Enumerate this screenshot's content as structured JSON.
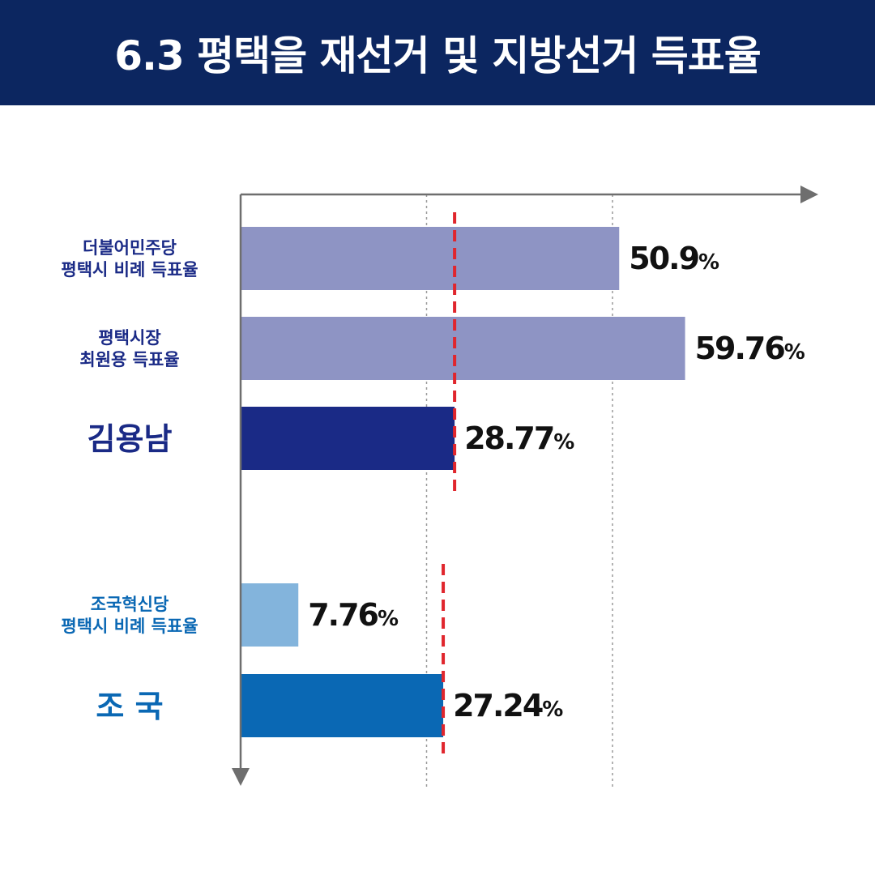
{
  "title": "6.3 평택을 재선거 및 지방선거 득표율",
  "colors": {
    "header_bg": "#0c2660",
    "dem_light": "#8e94c4",
    "dem_dark": "#1a2a86",
    "rebuild_light": "#83b4dc",
    "rebuild_dark": "#0a68b4",
    "reference_line": "#e0262d",
    "axis": "#6e6e6e"
  },
  "chart_data": {
    "type": "bar",
    "orientation": "horizontal",
    "title": "6.3 평택을 재선거 및 지방선거 득표율",
    "xlim": [
      0,
      70
    ],
    "grid": "vertical-dotted",
    "bars": [
      {
        "label": [
          "더불어민주당",
          "평택시 비례 득표율"
        ],
        "value": 50.9,
        "value_text": "50.9",
        "unit": "%",
        "color": "#8e94c4",
        "label_color": "#1a2a86",
        "label_size": "small"
      },
      {
        "label": [
          "평택시장",
          "최원용 득표율"
        ],
        "value": 59.76,
        "value_text": "59.76",
        "unit": "%",
        "color": "#8e94c4",
        "label_color": "#1a2a86",
        "label_size": "small"
      },
      {
        "label": [
          "김용남"
        ],
        "value": 28.77,
        "value_text": "28.77",
        "unit": "%",
        "color": "#1a2a86",
        "label_color": "#1a2a86",
        "label_size": "big"
      },
      {
        "label": [
          "조국혁신당",
          "평택시 비례 득표율"
        ],
        "value": 7.76,
        "value_text": "7.76",
        "unit": "%",
        "color": "#83b4dc",
        "label_color": "#0a68b4",
        "label_size": "small"
      },
      {
        "label": [
          "조 국"
        ],
        "value": 27.24,
        "value_text": "27.24",
        "unit": "%",
        "color": "#0a68b4",
        "label_color": "#0a68b4",
        "label_size": "big"
      }
    ],
    "reference_lines": [
      {
        "value": 28.77,
        "style": "dashed",
        "color": "#e0262d"
      },
      {
        "value": 27.24,
        "style": "dashed",
        "color": "#e0262d"
      }
    ]
  }
}
